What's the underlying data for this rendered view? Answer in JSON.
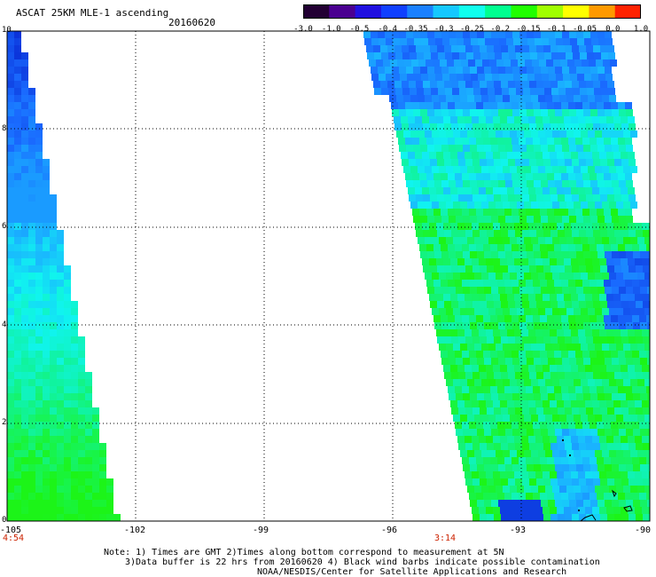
{
  "header": {
    "title": "ASCAT 25KM MLE-1 ascending",
    "date": "20160620"
  },
  "colorbar": {
    "ticks": [
      "-3.0",
      "-1.0",
      "-0.5",
      "-0.4",
      "-0.35",
      "-0.3",
      "-0.25",
      "-0.2",
      "-0.15",
      "-0.1",
      "-0.05",
      "0.0",
      "1.0"
    ],
    "colors": [
      "#220033",
      "#4a0090",
      "#2010e0",
      "#1040ff",
      "#1a80ff",
      "#15c8ff",
      "#10ffee",
      "#00ff90",
      "#20ff00",
      "#a0ff00",
      "#ffff00",
      "#ff9900",
      "#ff2200"
    ]
  },
  "axes": {
    "x_ticks": [
      "-105",
      "-102",
      "-99",
      "-96",
      "-93",
      "-90"
    ],
    "y_ticks": [
      "10",
      "8",
      "6",
      "4",
      "2",
      "0"
    ],
    "pass_times": [
      "4:54",
      "3:14"
    ],
    "xlim": [
      -105,
      -90
    ],
    "ylim": [
      0,
      10
    ]
  },
  "footer": {
    "note_line1": "Note: 1) Times are GMT 2)Times along bottom correspond to measurement at 5N",
    "note_line2": "3)Data buffer is 22 hrs from 20160620 4) Black wind barbs indicate possible contamination",
    "note_line3": "NOAA/NESDIS/Center for Satellite Applications and Research"
  }
}
